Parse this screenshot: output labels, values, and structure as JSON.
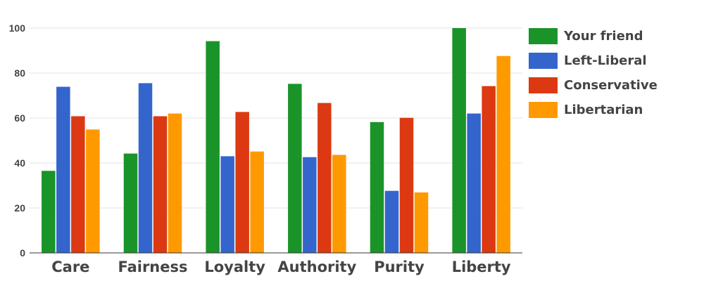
{
  "chart_data": {
    "type": "bar",
    "categories": [
      "Care",
      "Fairness",
      "Loyalty",
      "Authority",
      "Purity",
      "Liberty"
    ],
    "series": [
      {
        "name": "Your friend",
        "color": "#1a9428",
        "values": [
          36.5,
          44.2,
          94.2,
          75.2,
          58.2,
          100
        ]
      },
      {
        "name": "Left-Liberal",
        "color": "#3465cc",
        "values": [
          73.9,
          75.5,
          43,
          42.6,
          27.6,
          62
        ]
      },
      {
        "name": "Conservative",
        "color": "#dc3912",
        "values": [
          60.8,
          60.8,
          62.7,
          66.7,
          60.1,
          74.2
        ]
      },
      {
        "name": "Libertarian",
        "color": "#ff9900",
        "values": [
          54.9,
          62,
          45.1,
          43.6,
          26.9,
          87.6
        ]
      }
    ],
    "ylim": [
      0,
      100
    ],
    "yticks": [
      "0",
      "20",
      "40",
      "60",
      "80",
      "100"
    ],
    "grid": true,
    "legend_position": "right"
  }
}
